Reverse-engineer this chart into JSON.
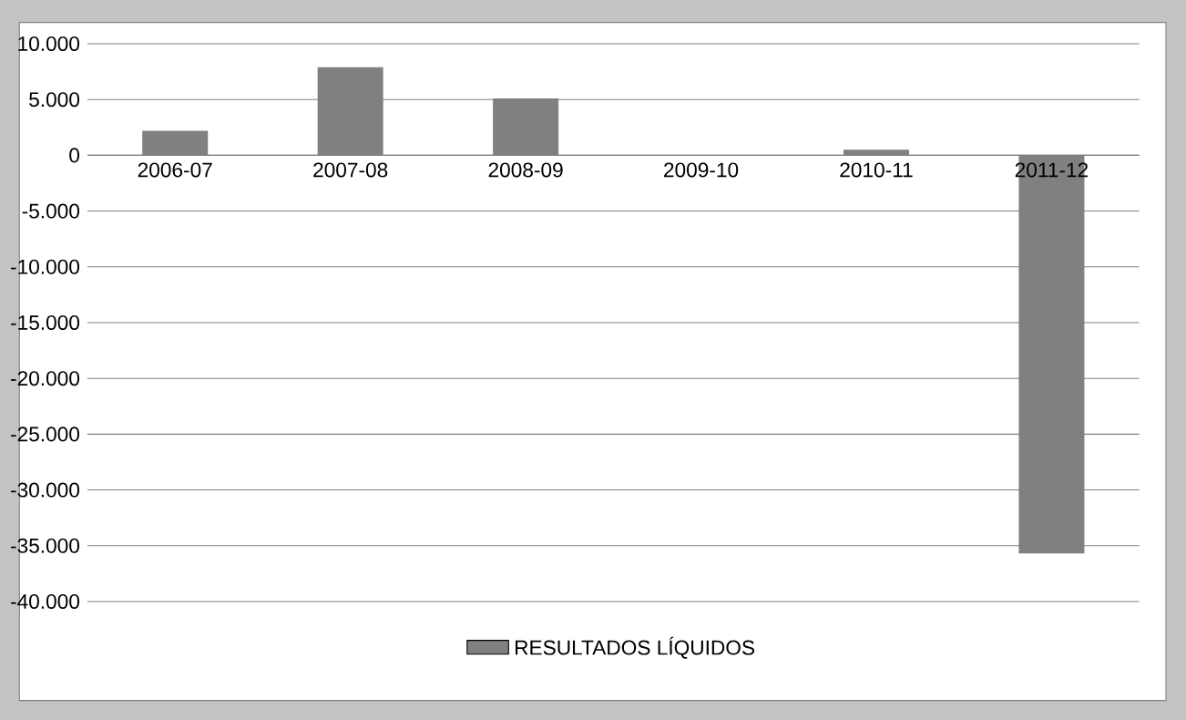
{
  "chart_data": {
    "type": "bar",
    "categories": [
      "2006-07",
      "2007-08",
      "2008-09",
      "2009-10",
      "2010-11",
      "2011-12"
    ],
    "series": [
      {
        "name": "RESULTADOS LÍQUIDOS",
        "color": "#808080",
        "values": [
          2200,
          7900,
          5100,
          0,
          500,
          -35700
        ]
      }
    ],
    "ylim": [
      -40000,
      10000
    ],
    "yticks": [
      {
        "value": -40000,
        "label": "-40.000"
      },
      {
        "value": -35000,
        "label": "-35.000"
      },
      {
        "value": -30000,
        "label": "-30.000"
      },
      {
        "value": -25000,
        "label": "-25.000"
      },
      {
        "value": -20000,
        "label": "-20.000"
      },
      {
        "value": -15000,
        "label": "-15.000"
      },
      {
        "value": -10000,
        "label": "-10.000"
      },
      {
        "value": -5000,
        "label": "-5.000"
      },
      {
        "value": 0,
        "label": "0"
      },
      {
        "value": 5000,
        "label": "5.000"
      },
      {
        "value": 10000,
        "label": "10.000"
      }
    ],
    "grid": "y",
    "legend": "bottom"
  }
}
